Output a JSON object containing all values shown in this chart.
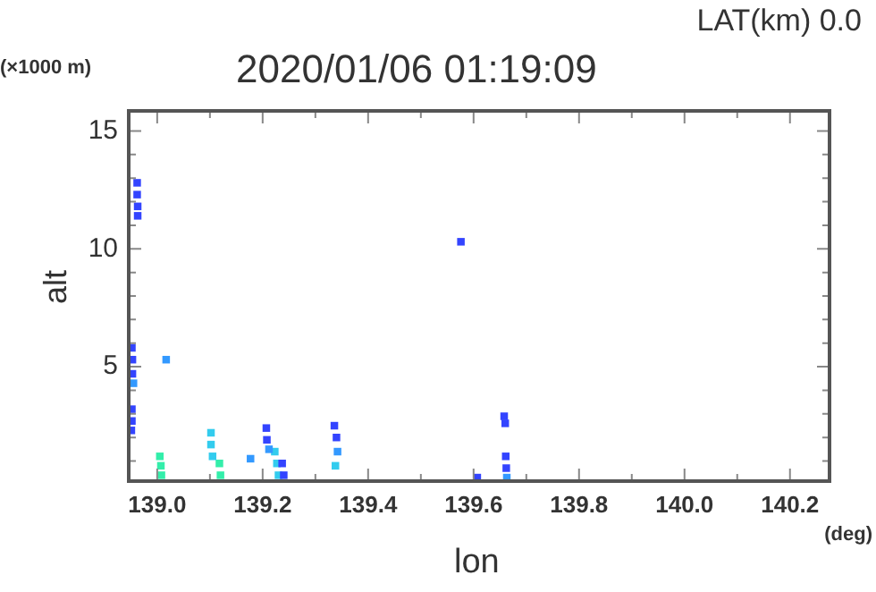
{
  "chart_data": {
    "type": "scatter",
    "title": "2020/01/06 01:19:09",
    "subtitle": "LAT(km) 0.0",
    "xlabel": "lon",
    "ylabel": "alt",
    "annotations": [
      "(×1000 m)",
      "(deg)"
    ],
    "marker": "square",
    "grid": false,
    "legend": false,
    "xlim": [
      138.946,
      140.275
    ],
    "ylim": [
      0.15,
      15.85
    ],
    "xticks": [
      {
        "value": 139.0,
        "label": "139.0"
      },
      {
        "value": 139.1,
        "label": null
      },
      {
        "value": 139.2,
        "label": "139.2"
      },
      {
        "value": 139.3,
        "label": null
      },
      {
        "value": 139.4,
        "label": "139.4"
      },
      {
        "value": 139.5,
        "label": null
      },
      {
        "value": 139.6,
        "label": "139.6"
      },
      {
        "value": 139.7,
        "label": null
      },
      {
        "value": 139.8,
        "label": "139.8"
      },
      {
        "value": 139.9,
        "label": null
      },
      {
        "value": 140.0,
        "label": "140.0"
      },
      {
        "value": 140.1,
        "label": null
      },
      {
        "value": 140.2,
        "label": "140.2"
      }
    ],
    "yticks": [
      {
        "value": 1,
        "label": null
      },
      {
        "value": 2,
        "label": null
      },
      {
        "value": 3,
        "label": null
      },
      {
        "value": 4,
        "label": null
      },
      5,
      {
        "value": 6,
        "label": null
      },
      {
        "value": 7,
        "label": null
      },
      {
        "value": 8,
        "label": null
      },
      {
        "value": 9,
        "label": null
      },
      10,
      {
        "value": 11,
        "label": null
      },
      {
        "value": 12,
        "label": null
      },
      {
        "value": 13,
        "label": null
      },
      {
        "value": 14,
        "label": null
      },
      15
    ],
    "series": [
      {
        "color": "#3344ff",
        "x": [
          138.962,
          138.962,
          138.963,
          138.963,
          138.952,
          138.953,
          138.953,
          138.952,
          138.952,
          138.951,
          139.207,
          139.208,
          139.237,
          139.24,
          139.336,
          139.34,
          139.607,
          139.658,
          139.66,
          139.661,
          139.662,
          139.576
        ],
        "values": [
          12.8,
          12.3,
          11.8,
          11.4,
          5.8,
          5.3,
          4.7,
          3.2,
          2.7,
          2.3,
          2.4,
          1.9,
          0.9,
          0.4,
          2.5,
          2.0,
          0.3,
          2.9,
          2.6,
          1.2,
          0.7,
          10.3
        ]
      },
      {
        "color": "#3399ff",
        "x": [
          138.955,
          139.212,
          139.342,
          139.663,
          139.017,
          139.177
        ],
        "values": [
          4.3,
          1.5,
          1.4,
          0.3,
          5.3,
          1.1
        ]
      },
      {
        "color": "#33ccee",
        "x": [
          139.102,
          139.102,
          139.105,
          139.223,
          139.227,
          139.23,
          139.338
        ],
        "values": [
          2.2,
          1.7,
          1.2,
          1.4,
          0.9,
          0.4,
          0.8
        ]
      },
      {
        "color": "#33eeaa",
        "x": [
          139.005,
          139.007,
          139.008,
          139.118,
          139.12
        ],
        "values": [
          1.2,
          0.8,
          0.4,
          0.9,
          0.4
        ]
      }
    ]
  }
}
